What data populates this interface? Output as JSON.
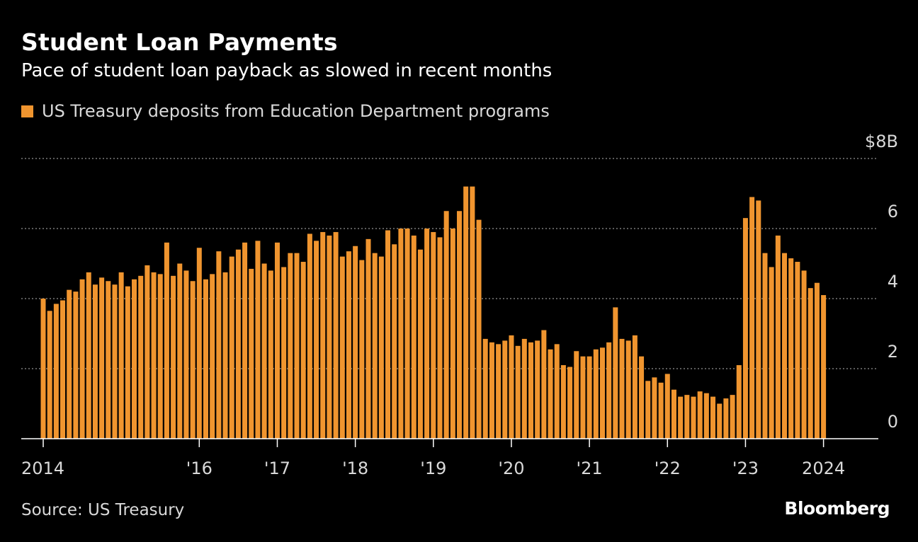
{
  "title": "Student Loan Payments",
  "subtitle": "Pace of student loan payback as slowed in recent months",
  "source": "Source: US Treasury",
  "logo": "Bloomberg",
  "colors": {
    "background": "#000000",
    "bar": "#f0952f",
    "grid": "#7a7a7a",
    "axis": "#ffffff"
  },
  "chart_data": {
    "type": "bar",
    "series": [
      {
        "name": "US Treasury deposits from Education Department programs",
        "values": [
          4.0,
          3.65,
          3.85,
          3.95,
          4.25,
          4.2,
          4.55,
          4.75,
          4.4,
          4.6,
          4.5,
          4.4,
          4.75,
          4.35,
          4.55,
          4.65,
          4.95,
          4.75,
          4.7,
          5.6,
          4.65,
          5.0,
          4.8,
          4.5,
          5.45,
          4.55,
          4.7,
          5.35,
          4.75,
          5.2,
          5.4,
          5.6,
          4.85,
          5.65,
          5.0,
          4.8,
          5.6,
          4.9,
          5.3,
          5.3,
          5.05,
          5.85,
          5.65,
          5.9,
          5.8,
          5.9,
          5.2,
          5.35,
          5.5,
          5.1,
          5.7,
          5.3,
          5.2,
          5.95,
          5.55,
          6.0,
          6.0,
          5.8,
          5.4,
          6.0,
          5.9,
          5.75,
          6.5,
          6.0,
          6.5,
          7.2,
          7.2,
          6.25,
          2.85,
          2.75,
          2.7,
          2.8,
          2.95,
          2.65,
          2.85,
          2.75,
          2.8,
          3.1,
          2.55,
          2.7,
          2.1,
          2.05,
          2.5,
          2.35,
          2.35,
          2.55,
          2.6,
          2.75,
          3.75,
          2.85,
          2.8,
          2.95,
          2.35,
          1.65,
          1.75,
          1.6,
          1.85,
          1.4,
          1.2,
          1.25,
          1.2,
          1.35,
          1.3,
          1.2,
          1.0,
          1.15,
          1.25,
          2.1,
          6.3,
          6.9,
          6.8,
          5.3,
          4.9,
          5.8,
          5.3,
          5.15,
          5.05,
          4.8,
          4.3,
          4.45,
          4.1
        ]
      }
    ],
    "legend": [
      "US Treasury deposits from Education Department programs"
    ],
    "ylim": [
      0,
      8
    ],
    "yticks": [
      0,
      2,
      4,
      6,
      8
    ],
    "ytick_labels": [
      "0",
      "2",
      "4",
      "6",
      "$8B"
    ],
    "xticks": [
      {
        "label": "2014",
        "index": 0
      },
      {
        "label": "'16",
        "index": 24
      },
      {
        "label": "'17",
        "index": 36
      },
      {
        "label": "'18",
        "index": 48
      },
      {
        "label": "'19",
        "index": 60
      },
      {
        "label": "'20",
        "index": 72
      },
      {
        "label": "'21",
        "index": 84
      },
      {
        "label": "'22",
        "index": 96
      },
      {
        "label": "'23",
        "index": 108
      },
      {
        "label": "2024",
        "index": 120
      }
    ],
    "grid": true,
    "legend_position": "top-left",
    "axis_side": "right"
  }
}
